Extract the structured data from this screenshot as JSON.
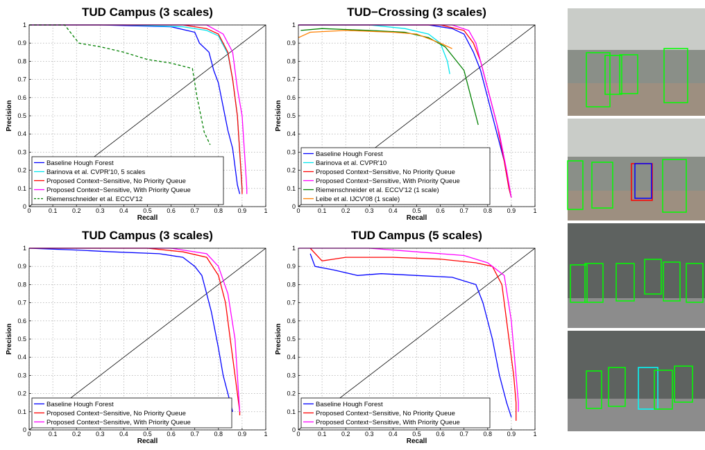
{
  "chart_data": [
    {
      "type": "line",
      "title": "TUD Campus (3 scales)",
      "x_label": "Recall",
      "y_label": "Precision",
      "xlim": [
        0,
        1
      ],
      "ylim": [
        0,
        1
      ],
      "xticks": [
        0,
        0.1,
        0.2,
        0.3,
        0.4,
        0.5,
        0.6,
        0.7,
        0.8,
        0.9,
        1
      ],
      "yticks": [
        0,
        0.1,
        0.2,
        0.3,
        0.4,
        0.5,
        0.6,
        0.7,
        0.8,
        0.9,
        1
      ],
      "grid": true,
      "legend": "lower left",
      "series": [
        {
          "name": "Baseline Hough Forest",
          "color": "#0000ff",
          "linestyle": "solid",
          "x": [
            0,
            0.3,
            0.6,
            0.7,
            0.72,
            0.76,
            0.78,
            0.8,
            0.82,
            0.84,
            0.86,
            0.87,
            0.88,
            0.89
          ],
          "values": [
            1,
            1,
            0.99,
            0.96,
            0.9,
            0.85,
            0.75,
            0.68,
            0.55,
            0.42,
            0.32,
            0.22,
            0.12,
            0.07
          ]
        },
        {
          "name": "Barinova et al. CVPR'10, 5 scales",
          "color": "#00e5ee",
          "linestyle": "solid",
          "x": [
            0,
            0.4,
            0.65,
            0.75,
            0.8,
            0.84,
            0.86,
            0.88,
            0.89,
            0.9
          ],
          "values": [
            1,
            1,
            0.99,
            0.97,
            0.94,
            0.84,
            0.7,
            0.5,
            0.3,
            0.08
          ]
        },
        {
          "name": "Proposed Context−Sensitive, No Priority Queue",
          "color": "#ff0000",
          "linestyle": "solid",
          "x": [
            0,
            0.4,
            0.65,
            0.75,
            0.8,
            0.84,
            0.86,
            0.88,
            0.89,
            0.9,
            0.9
          ],
          "values": [
            1,
            1,
            1,
            0.98,
            0.95,
            0.85,
            0.7,
            0.5,
            0.3,
            0.1,
            0.07
          ]
        },
        {
          "name": "Proposed Context−Sensitive, With Priority Queue",
          "color": "#ff00ff",
          "linestyle": "solid",
          "x": [
            0,
            0.5,
            0.75,
            0.82,
            0.86,
            0.88,
            0.9,
            0.91,
            0.92,
            0.92
          ],
          "values": [
            1,
            1,
            1,
            0.95,
            0.85,
            0.65,
            0.5,
            0.3,
            0.1,
            0.07
          ]
        },
        {
          "name": "Riemenschneider et al. ECCV'12",
          "color": "#008000",
          "linestyle": "dashed",
          "x": [
            0,
            0.15,
            0.18,
            0.21,
            0.3,
            0.4,
            0.5,
            0.6,
            0.69,
            0.71,
            0.74,
            0.765
          ],
          "values": [
            1,
            1,
            0.95,
            0.9,
            0.88,
            0.85,
            0.81,
            0.79,
            0.76,
            0.6,
            0.41,
            0.34
          ]
        }
      ]
    },
    {
      "type": "line",
      "title": "TUD−Crossing (3 scales)",
      "x_label": "Recall",
      "y_label": "Precision",
      "xlim": [
        0,
        1
      ],
      "ylim": [
        0,
        1
      ],
      "xticks": [
        0,
        0.1,
        0.2,
        0.3,
        0.4,
        0.5,
        0.6,
        0.7,
        0.8,
        0.9,
        1
      ],
      "yticks": [
        0,
        0.1,
        0.2,
        0.3,
        0.4,
        0.5,
        0.6,
        0.7,
        0.8,
        0.9,
        1
      ],
      "grid": true,
      "legend": "lower left",
      "series": [
        {
          "name": "Baseline Hough Forest",
          "color": "#0000ff",
          "linestyle": "solid",
          "x": [
            0,
            0.55,
            0.65,
            0.7,
            0.74,
            0.77,
            0.8,
            0.84,
            0.87,
            0.89,
            0.9
          ],
          "values": [
            1,
            1,
            0.98,
            0.95,
            0.85,
            0.75,
            0.6,
            0.4,
            0.25,
            0.1,
            0.05
          ]
        },
        {
          "name": "Barinova et al. CVPR'10",
          "color": "#00e5ee",
          "linestyle": "solid",
          "x": [
            0,
            0.3,
            0.45,
            0.55,
            0.6,
            0.63,
            0.64
          ],
          "values": [
            1,
            1,
            0.98,
            0.95,
            0.9,
            0.8,
            0.73
          ]
        },
        {
          "name": "Proposed Context−Sensitive, No Priority Queue",
          "color": "#ff0000",
          "linestyle": "solid",
          "x": [
            0,
            0.6,
            0.7,
            0.74,
            0.77,
            0.8,
            0.84,
            0.87,
            0.89,
            0.9
          ],
          "values": [
            1,
            1,
            0.97,
            0.9,
            0.8,
            0.65,
            0.45,
            0.25,
            0.1,
            0.05
          ]
        },
        {
          "name": "Proposed Context−Sensitive, With Priority Queue",
          "color": "#ff00ff",
          "linestyle": "solid",
          "x": [
            0,
            0.65,
            0.72,
            0.75,
            0.77,
            0.81,
            0.85,
            0.88,
            0.9
          ],
          "values": [
            1,
            1,
            0.97,
            0.9,
            0.8,
            0.6,
            0.4,
            0.2,
            0.05
          ]
        },
        {
          "name": "Riemenschneider et al. ECCV'12 (1 scale)",
          "color": "#008000",
          "linestyle": "solid",
          "x": [
            0.01,
            0.1,
            0.3,
            0.45,
            0.55,
            0.62,
            0.7,
            0.73,
            0.75,
            0.76
          ],
          "values": [
            0.97,
            0.98,
            0.97,
            0.96,
            0.93,
            0.88,
            0.75,
            0.6,
            0.5,
            0.45
          ]
        },
        {
          "name": "Leibe et al. IJCV'08 (1 scale)",
          "color": "#ff8000",
          "linestyle": "solid",
          "x": [
            0,
            0.05,
            0.2,
            0.4,
            0.5,
            0.6,
            0.65
          ],
          "values": [
            0.93,
            0.96,
            0.97,
            0.96,
            0.95,
            0.9,
            0.87
          ]
        }
      ]
    },
    {
      "type": "line",
      "title": "TUD Campus (3 scales)",
      "x_label": "Recall",
      "y_label": "Precision",
      "xlim": [
        0,
        1
      ],
      "ylim": [
        0,
        1
      ],
      "xticks": [
        0,
        0.1,
        0.2,
        0.3,
        0.4,
        0.5,
        0.6,
        0.7,
        0.8,
        0.9,
        1
      ],
      "yticks": [
        0,
        0.1,
        0.2,
        0.3,
        0.4,
        0.5,
        0.6,
        0.7,
        0.8,
        0.9,
        1
      ],
      "grid": true,
      "legend": "lower left",
      "series": [
        {
          "name": "Baseline Hough Forest",
          "color": "#0000ff",
          "linestyle": "solid",
          "x": [
            0,
            0.2,
            0.35,
            0.55,
            0.65,
            0.7,
            0.73,
            0.75,
            0.77,
            0.8,
            0.82,
            0.84,
            0.86
          ],
          "values": [
            1,
            0.99,
            0.98,
            0.97,
            0.95,
            0.9,
            0.85,
            0.75,
            0.65,
            0.45,
            0.3,
            0.2,
            0.1
          ]
        },
        {
          "name": "Proposed Context−Sensitive, No Priority Queue",
          "color": "#ff0000",
          "linestyle": "solid",
          "x": [
            0,
            0.5,
            0.65,
            0.75,
            0.8,
            0.83,
            0.85,
            0.87,
            0.89,
            0.89
          ],
          "values": [
            1,
            1,
            0.98,
            0.95,
            0.85,
            0.7,
            0.5,
            0.3,
            0.1,
            0.08
          ]
        },
        {
          "name": "Proposed Context−Sensitive, With Priority Queue",
          "color": "#ff00ff",
          "linestyle": "solid",
          "x": [
            0,
            0.6,
            0.75,
            0.8,
            0.84,
            0.87,
            0.88,
            0.89
          ],
          "values": [
            1,
            1,
            0.97,
            0.9,
            0.75,
            0.5,
            0.3,
            0.1
          ]
        }
      ]
    },
    {
      "type": "line",
      "title": "TUD Campus (5 scales)",
      "x_label": "Recall",
      "y_label": "Precision",
      "xlim": [
        0,
        1
      ],
      "ylim": [
        0,
        1
      ],
      "xticks": [
        0,
        0.1,
        0.2,
        0.3,
        0.4,
        0.5,
        0.6,
        0.7,
        0.8,
        0.9,
        1
      ],
      "yticks": [
        0,
        0.1,
        0.2,
        0.3,
        0.4,
        0.5,
        0.6,
        0.7,
        0.8,
        0.9,
        1
      ],
      "grid": true,
      "legend": "lower left",
      "series": [
        {
          "name": "Baseline Hough Forest",
          "color": "#0000ff",
          "linestyle": "solid",
          "x": [
            0.05,
            0.07,
            0.15,
            0.25,
            0.35,
            0.5,
            0.65,
            0.75,
            0.78,
            0.82,
            0.85,
            0.88,
            0.9
          ],
          "values": [
            0.97,
            0.9,
            0.88,
            0.85,
            0.86,
            0.85,
            0.84,
            0.8,
            0.7,
            0.5,
            0.3,
            0.15,
            0.07
          ]
        },
        {
          "name": "Proposed Context−Sensitive, No Priority Queue",
          "color": "#ff0000",
          "linestyle": "solid",
          "x": [
            0.05,
            0.1,
            0.2,
            0.4,
            0.6,
            0.75,
            0.82,
            0.86,
            0.89,
            0.91,
            0.92,
            0.92
          ],
          "values": [
            1,
            0.93,
            0.95,
            0.95,
            0.94,
            0.92,
            0.9,
            0.8,
            0.5,
            0.3,
            0.15,
            0.05
          ]
        },
        {
          "name": "Proposed Context−Sensitive, With Priority Queue",
          "color": "#ff00ff",
          "linestyle": "solid",
          "x": [
            0,
            0.3,
            0.5,
            0.7,
            0.8,
            0.87,
            0.9,
            0.92,
            0.93,
            0.93
          ],
          "values": [
            1,
            1,
            0.98,
            0.96,
            0.92,
            0.85,
            0.6,
            0.3,
            0.15,
            0.1
          ]
        }
      ]
    }
  ]
}
